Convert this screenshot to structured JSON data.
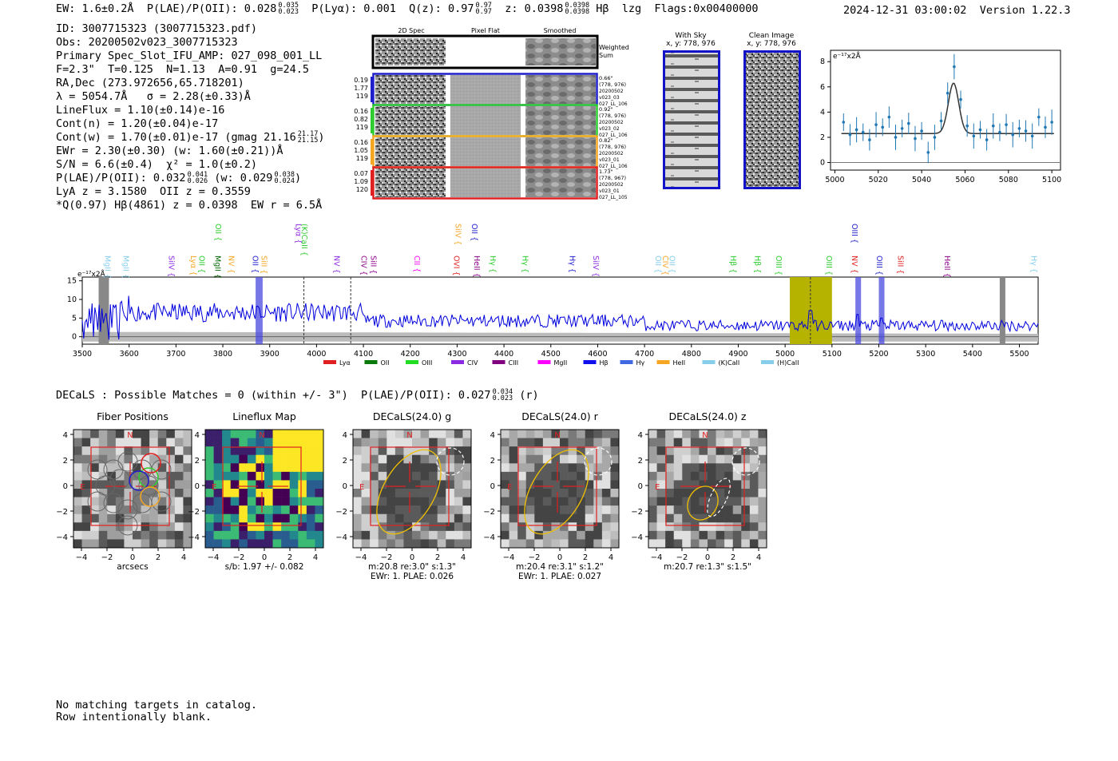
{
  "header": {
    "ew_label": "EW: 1.6±0.2Å",
    "plae_label": "P(LAE)/P(OII): 0.028",
    "plae_hi": "0.035",
    "plae_lo": "0.023",
    "plya_label": "P(Lyα): 0.001",
    "q_label": "Q(z): 0.97",
    "q_hi": "0.97",
    "q_lo": "0.97",
    "z_label": "z: 0.0398",
    "z_hi": "0.0398",
    "z_lo": "0.0398",
    "line_label": "Hβ",
    "tag": "lzg",
    "flags": "Flags:0x00400000",
    "timestamp": "2024-12-31 03:00:02",
    "version": "Version 1.22.3"
  },
  "info": {
    "id": "ID: 3007715323 (3007715323.pdf)",
    "obs": "Obs: 20200502v023_3007715323",
    "primary": "Primary Spec_Slot_IFU_AMP: 027_098_001_LL",
    "fit": "F=2.3\"  T=0.125  N=1.13  A=0.91  g=24.5",
    "radec": "RA,Dec (273.972656,65.718201)",
    "lambda": "λ = 5054.7Å   σ = 2.28(±0.33)Å",
    "lineflux": "LineFlux = 1.10(±0.14)e-16",
    "contn": "Cont(n) = 1.20(±0.04)e-17",
    "contw": "Cont(w) = 1.70(±0.01)e-17 (gmag 21.16",
    "contw_hi": "21.17",
    "contw_lo": "21.15",
    "contw_end": ")",
    "ewr": "EWr = 2.30(±0.30) (w: 1.60(±0.21))Å",
    "sn": "S/N = 6.6(±0.4)  χ² = 1.0(±0.2)",
    "plae": "P(LAE)/P(OII): 0.032",
    "plae_hi": "0.041",
    "plae_lo": "0.026",
    "plae_w": " (w: 0.029",
    "plae_w_hi": "0.038",
    "plae_w_lo": "0.024",
    "plae_end": ")",
    "lya": "LyA z = 3.1580  OII z = 0.3559",
    "q": "*Q(0.97) Hβ(4861) z = 0.0398  EW r = 6.5Å"
  },
  "cutouts": {
    "headers": [
      "2D Spec",
      "Pixel Flat",
      "Smoothed"
    ],
    "weighted_label": [
      "Weighted",
      "Sum"
    ],
    "rows": [
      {
        "vals": [
          "0.19",
          "1.77",
          "119"
        ],
        "info": [
          "0.66\"",
          "(778, 976)",
          "20200502",
          "v023_03",
          "027_LL_106"
        ],
        "color": "#1f1fcc"
      },
      {
        "vals": [
          "0.16",
          "0.82",
          "119"
        ],
        "info": [
          "0.92\"",
          "(778, 976)",
          "20200502",
          "v023_02",
          "027_LL_106"
        ],
        "color": "#2ecc2e"
      },
      {
        "vals": [
          "0.16",
          "1.05",
          "119"
        ],
        "info": [
          "0.82\"",
          "(778, 976)",
          "20200502",
          "v023_01",
          "027_LL_106"
        ],
        "color": "#f5a623"
      },
      {
        "vals": [
          "0.07",
          "1.09",
          "120"
        ],
        "info": [
          "1.73\"",
          "(778, 967)",
          "20200502",
          "v023_01",
          "027_LL_105"
        ],
        "color": "#e02020"
      }
    ],
    "with_sky": [
      "With Sky",
      "x, y: 778, 976"
    ],
    "clean": [
      "Clean Image",
      "x, y: 778, 976"
    ]
  },
  "zoom_plot": {
    "unit": "e⁻¹⁷x2Å",
    "xticks": [
      "5000",
      "5020",
      "5040",
      "5060",
      "5080",
      "5100"
    ],
    "yticks": [
      "0",
      "2",
      "4",
      "6",
      "8"
    ]
  },
  "chart_data": {
    "type": "line",
    "title": "",
    "ylabel": "e⁻¹⁷x2Å",
    "xlim": [
      3500,
      5550
    ],
    "ylim": [
      -2,
      16
    ],
    "xticks": [
      3500,
      3600,
      3700,
      3800,
      3900,
      4000,
      4100,
      4200,
      4300,
      4400,
      4500,
      4600,
      4700,
      4800,
      4900,
      5000,
      5100,
      5200,
      5300,
      5400,
      5500
    ],
    "yticks": [
      0,
      5,
      10,
      15
    ],
    "highlight_region": [
      5010,
      5100
    ],
    "line_markers": [
      {
        "name": "MgII",
        "x": 3553,
        "color": "#87ceeb"
      },
      {
        "name": "MgII",
        "x": 3592,
        "color": "#87ceeb"
      },
      {
        "name": "SiIV",
        "x": 3689,
        "color": "#8a2be2"
      },
      {
        "name": "Lyα",
        "x": 3736,
        "color": "#f5a623"
      },
      {
        "name": "OII",
        "x": 3754,
        "color": "#2ecc2e"
      },
      {
        "name": "MgII",
        "x": 3788,
        "color": "#006400"
      },
      {
        "name": "OII",
        "x": 3789,
        "color": "#2ecc2e",
        "upper": true
      },
      {
        "name": "NV",
        "x": 3817,
        "color": "#f5a623"
      },
      {
        "name": "OII",
        "x": 3868,
        "color": "#1f1fcc"
      },
      {
        "name": "SiII",
        "x": 3887,
        "color": "#f5a623"
      },
      {
        "name": "Lyα",
        "x": 3960,
        "color": "#8a2be2",
        "upper": true
      },
      {
        "name": "(K)CaII",
        "x": 3973,
        "color": "#2ecc2e",
        "upper": true
      },
      {
        "name": "NV",
        "x": 4042,
        "color": "#8a2be2"
      },
      {
        "name": "CIV",
        "x": 4100,
        "color": "#8b008b"
      },
      {
        "name": "SiII",
        "x": 4120,
        "color": "#8b008b"
      },
      {
        "name": "CII",
        "x": 4213,
        "color": "#ff00ff"
      },
      {
        "name": "OVI",
        "x": 4298,
        "color": "#e02020"
      },
      {
        "name": "SiIV",
        "x": 4301,
        "color": "#f5a623",
        "upper": true
      },
      {
        "name": "OII",
        "x": 4336,
        "color": "#1f1fcc",
        "upper": true
      },
      {
        "name": "HeII",
        "x": 4341,
        "color": "#8b008b"
      },
      {
        "name": "Hγ",
        "x": 4375,
        "color": "#2ecc2e"
      },
      {
        "name": "Hγ",
        "x": 4444,
        "color": "#2ecc2e"
      },
      {
        "name": "Hγ",
        "x": 4545,
        "color": "#1f1fcc"
      },
      {
        "name": "SiIV",
        "x": 4595,
        "color": "#8a2be2"
      },
      {
        "name": "OII",
        "x": 4728,
        "color": "#87ceeb"
      },
      {
        "name": "CIV",
        "x": 4743,
        "color": "#f5a623"
      },
      {
        "name": "OII",
        "x": 4758,
        "color": "#87ceeb"
      },
      {
        "name": "Hβ",
        "x": 4888,
        "color": "#2ecc2e"
      },
      {
        "name": "Hβ",
        "x": 4940,
        "color": "#2ecc2e"
      },
      {
        "name": "OIII",
        "x": 4985,
        "color": "#2ecc2e"
      },
      {
        "name": "OIII",
        "x": 5093,
        "color": "#2ecc2e"
      },
      {
        "name": "NV",
        "x": 5147,
        "color": "#e02020"
      },
      {
        "name": "OIII",
        "x": 5147,
        "color": "#1f1fcc",
        "upper": true
      },
      {
        "name": "OIII",
        "x": 5200,
        "color": "#1f1fcc"
      },
      {
        "name": "SiII",
        "x": 5245,
        "color": "#e02020"
      },
      {
        "name": "HeII",
        "x": 5345,
        "color": "#8b008b"
      },
      {
        "name": "Hγ",
        "x": 5530,
        "color": "#87ceeb"
      }
    ],
    "legend": [
      {
        "name": "Lyα",
        "color": "#e02020"
      },
      {
        "name": "OII",
        "color": "#0a7a0a"
      },
      {
        "name": "OIII",
        "color": "#22dd22"
      },
      {
        "name": "CIV",
        "color": "#8a2be2"
      },
      {
        "name": "CIII",
        "color": "#800080"
      },
      {
        "name": "MgII",
        "color": "#ff00ff"
      },
      {
        "name": "Hβ",
        "color": "#1010ee"
      },
      {
        "name": "Hγ",
        "color": "#4169e1"
      },
      {
        "name": "HeII",
        "color": "#f5a623"
      },
      {
        "name": "(K)CaII",
        "color": "#87ceeb"
      },
      {
        "name": "(H)CaII",
        "color": "#87ceeb"
      }
    ],
    "series": [
      {
        "name": "zoom_fit",
        "x": [
          5000,
          5040,
          5045,
          5050,
          5053,
          5055,
          5057,
          5060,
          5065,
          5070,
          5100
        ],
        "values": [
          2.3,
          2.3,
          2.5,
          4.0,
          5.8,
          6.3,
          5.9,
          4.2,
          2.6,
          2.3,
          2.3
        ]
      },
      {
        "name": "zoom_data",
        "x": [
          5004,
          5007,
          5010,
          5013,
          5016,
          5019,
          5022,
          5025,
          5028,
          5031,
          5034,
          5037,
          5040,
          5043,
          5046,
          5049,
          5052,
          5055,
          5058,
          5061,
          5064,
          5067,
          5070,
          5073,
          5076,
          5079,
          5082,
          5085,
          5088,
          5091,
          5094,
          5097,
          5100
        ],
        "values": [
          3.2,
          2.2,
          2.6,
          2.4,
          1.8,
          3.0,
          2.8,
          3.6,
          2.0,
          2.7,
          3.1,
          1.9,
          2.5,
          0.8,
          2.0,
          3.3,
          5.5,
          7.6,
          5.0,
          2.9,
          2.1,
          2.6,
          1.8,
          2.9,
          2.4,
          3.0,
          2.2,
          2.7,
          2.5,
          2.1,
          3.6,
          2.8,
          3.2
        ]
      }
    ]
  },
  "decals_line": {
    "text": "DECaLS : Possible Matches = 0 (within +/- 3\")  P(LAE)/P(OII): 0.027",
    "hi": "0.034",
    "lo": "0.023",
    "end": " (r)"
  },
  "panels": [
    {
      "title": "Fiber Positions",
      "cap1": "arcsecs",
      "cap2": ""
    },
    {
      "title": "Lineflux Map",
      "cap1": "s/b: 1.97 +/- 0.082",
      "cap2": ""
    },
    {
      "title": "DECaLS(24.0) g",
      "cap1": "m:20.8  re:3.0\"  s:1.3\"",
      "cap2": "EWr: 1. PLAE: 0.026"
    },
    {
      "title": "DECaLS(24.0) r",
      "cap1": "m:20.4  re:3.1\"  s:1.2\"",
      "cap2": "EWr: 1. PLAE: 0.027"
    },
    {
      "title": "DECaLS(24.0) z",
      "cap1": "m:20.7  re:1.3\"  s:1.5\"",
      "cap2": ""
    }
  ],
  "panel_labels": {
    "north": "N",
    "east": "E",
    "xticks": [
      "−4",
      "−2",
      "0",
      "2",
      "4"
    ],
    "yticks": [
      "4",
      "2",
      "0",
      "−2",
      "−4"
    ]
  },
  "footer": {
    "line1": "No matching targets in catalog.",
    "line2": "Row intentionally blank."
  }
}
